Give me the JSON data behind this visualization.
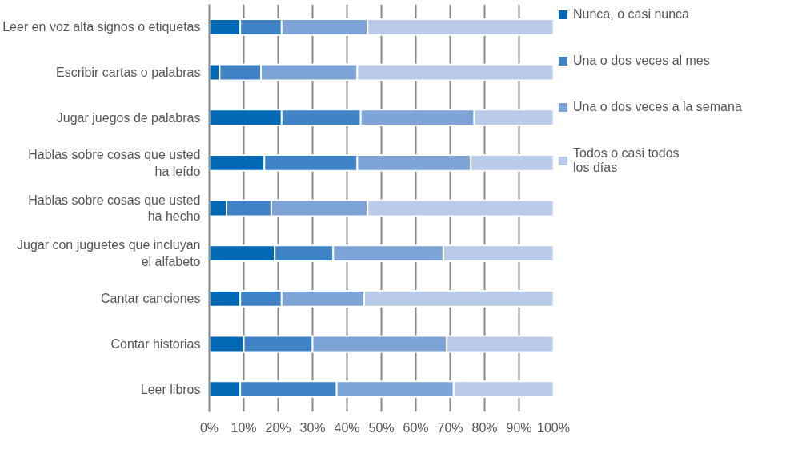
{
  "chart_data": {
    "type": "bar",
    "orientation": "horizontal",
    "stacked": true,
    "categories": [
      "Leer en voz alta signos o etiquetas",
      "Escribir cartas o palabras",
      "Jugar juegos de palabras",
      "Hablas sobre cosas que usted\nha leído",
      "Hablas sobre cosas que usted\nha hecho",
      "Jugar con juguetes que incluyan\nel alfabeto",
      "Cantar canciones",
      "Contar historias",
      "Leer libros"
    ],
    "series": [
      {
        "name": "Nunca, o casi nunca",
        "color": "#0068b5",
        "values": [
          9,
          3,
          21,
          16,
          5,
          19,
          9,
          10,
          9
        ]
      },
      {
        "name": "Una o dos veces al mes",
        "color": "#3f83c6",
        "values": [
          12,
          12,
          23,
          27,
          13,
          17,
          12,
          20,
          28
        ]
      },
      {
        "name": "Una o dos veces a la semana",
        "color": "#7ea3d6",
        "values": [
          25,
          28,
          33,
          33,
          28,
          32,
          24,
          39,
          34
        ]
      },
      {
        "name": "Todos o casi todos\nlos días",
        "color": "#bacae9",
        "values": [
          54,
          57,
          23,
          24,
          54,
          32,
          55,
          31,
          29
        ]
      }
    ],
    "xlim": [
      0,
      100
    ],
    "xticks": [
      {
        "value": 0,
        "label": "0%"
      },
      {
        "value": 10,
        "label": "10%"
      },
      {
        "value": 20,
        "label": "20%"
      },
      {
        "value": 30,
        "label": "30%"
      },
      {
        "value": 40,
        "label": "40%"
      },
      {
        "value": 50,
        "label": "50%"
      },
      {
        "value": 60,
        "label": "60%"
      },
      {
        "value": 70,
        "label": "70%"
      },
      {
        "value": 80,
        "label": "80%"
      },
      {
        "value": 90,
        "label": "90%"
      },
      {
        "value": 100,
        "label": "100%"
      }
    ],
    "grid": "x",
    "legend": "right"
  }
}
